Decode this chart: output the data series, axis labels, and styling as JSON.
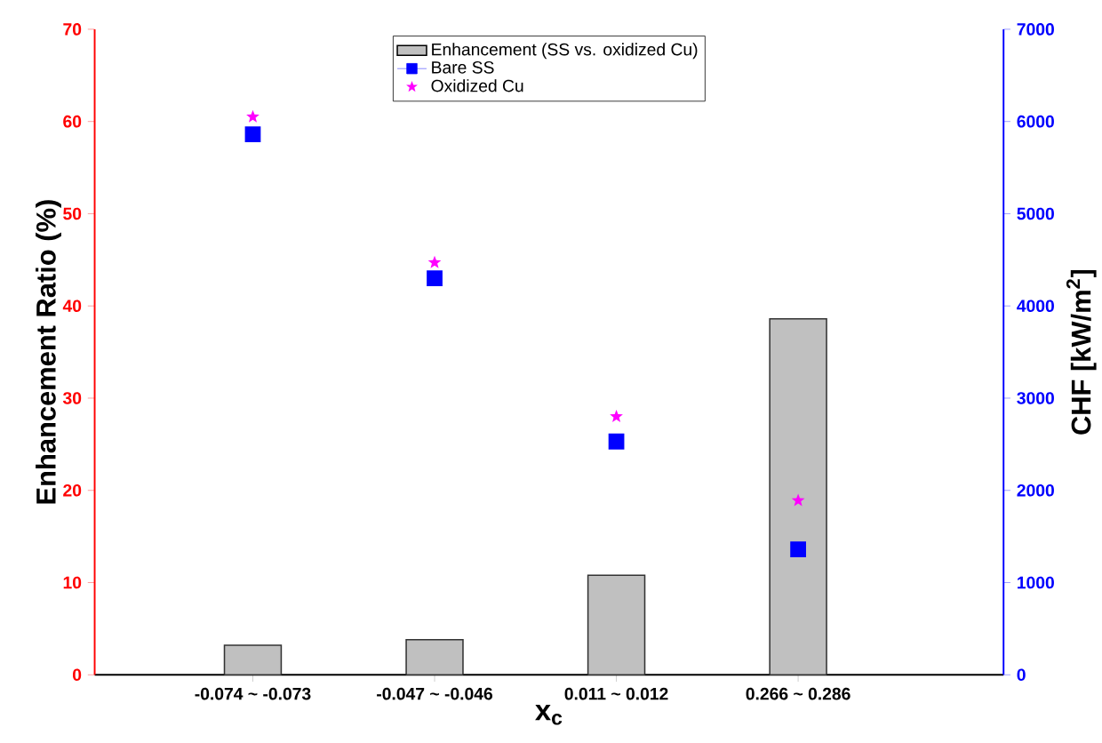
{
  "chart_data": {
    "type": "bar",
    "xlabel": "x$_{c}$",
    "ylabel": "Enhancement Ratio (%)",
    "y2label": "CHF [kW/m$^{2}$]",
    "categories": [
      "-0.074 ~ -0.073",
      "-0.047 ~ -0.046",
      "0.011 ~ 0.012",
      "0.266 ~ 0.286"
    ],
    "series": [
      {
        "name": "Enhancement (SS vs. oxidized Cu)",
        "color": "#c0c0c0",
        "values": [
          3.2,
          3.8,
          10.8,
          38.6
        ]
      },
      {
        "name": "Bare SS",
        "type": "scatter",
        "axis": "y2",
        "marker": "square",
        "color": "#0000ff",
        "x": [
          "-0.074 ~ -0.073",
          "-0.047 ~ -0.046",
          "0.011 ~ 0.012",
          "0.266 ~ 0.286"
        ],
        "values": [
          5860,
          4300,
          2530,
          1360
        ]
      },
      {
        "name": "Oxidized Cu",
        "type": "scatter",
        "axis": "y2",
        "marker": "star",
        "color": "#ff00ff",
        "x": [
          "-0.074 ~ -0.073",
          "-0.047 ~ -0.046",
          "0.011 ~ 0.012",
          "0.266 ~ 0.286"
        ],
        "values": [
          6050,
          4470,
          2800,
          1890
        ]
      }
    ],
    "ylim": [
      0,
      70
    ],
    "yticks": [
      0,
      10,
      20,
      30,
      40,
      50,
      60,
      70
    ],
    "y2lim": [
      0,
      7000
    ],
    "y2ticks": [
      0,
      1000,
      2000,
      3000,
      4000,
      5000,
      6000,
      7000
    ],
    "legend": "top",
    "grid": false
  }
}
